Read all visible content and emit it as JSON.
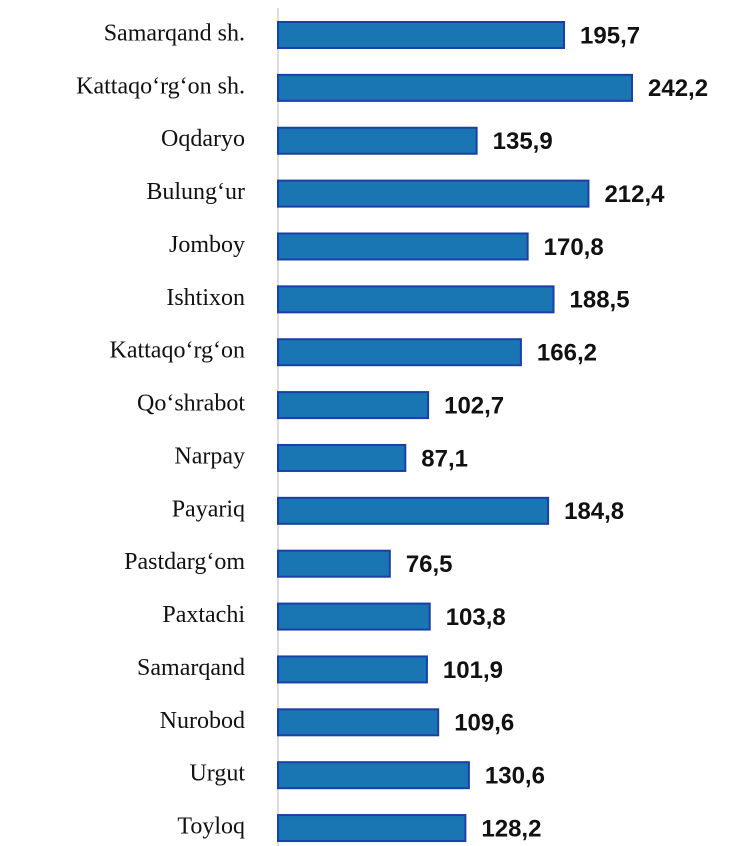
{
  "chart_data": {
    "type": "bar",
    "orientation": "horizontal",
    "categories": [
      "Samarqand sh.",
      "Kattaqo‘rg‘on  sh.",
      "Oqdaryo",
      "Bulung‘ur",
      "Jomboy",
      "Ishtixon",
      "Kattaqo‘rg‘on",
      "Qo‘shrabot",
      "Narpay",
      "Payariq",
      "Pastdarg‘om",
      "Paxtachi",
      "Samarqand",
      "Nurobod",
      "Urgut",
      "Toyloq"
    ],
    "values": [
      195.7,
      242.2,
      135.9,
      212.4,
      170.8,
      188.5,
      166.2,
      102.7,
      87.1,
      184.8,
      76.5,
      103.8,
      101.9,
      109.6,
      130.6,
      128.2
    ],
    "value_labels": [
      "195,7",
      "242,2",
      "135,9",
      "212,4",
      "170,8",
      "188,5",
      "166,2",
      "102,7",
      "87,1",
      "184,8",
      "76,5",
      "103,8",
      "101,9",
      "109,6",
      "130,6",
      "128,2"
    ],
    "color": "#1976b2"
  }
}
